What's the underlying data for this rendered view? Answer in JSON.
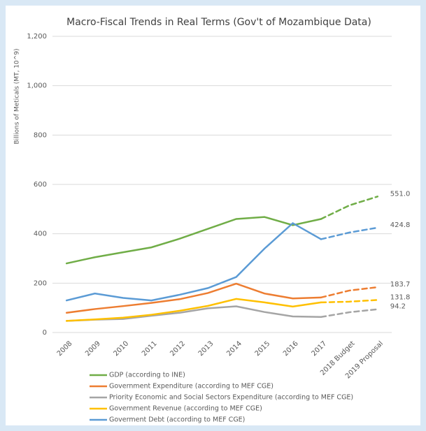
{
  "chart_data": {
    "type": "line",
    "title": "Macro-Fiscal Trends in Real Terms (Gov't of Mozambique Data)",
    "y_label": "Billions of Meticals (MT, 10^9)",
    "categories": [
      "2008",
      "2009",
      "2010",
      "2011",
      "2012",
      "2013",
      "2014",
      "2015",
      "2016",
      "2017",
      "2018 Budget",
      "2019 Proposal"
    ],
    "dashed_from": "2017",
    "ylim": [
      0,
      1200
    ],
    "yticks": [
      0,
      200,
      400,
      600,
      800,
      {
        "value": 1000,
        "label": "1,000"
      },
      {
        "value": 1200,
        "label": "1,200"
      }
    ],
    "grid": true,
    "legend": "bottom",
    "series": [
      {
        "name": "GDP (according to INE)",
        "color": "#70ad47",
        "values": [
          280,
          305,
          325,
          345,
          380,
          420,
          460,
          468,
          435,
          460,
          515,
          551.0
        ],
        "value_labels": [
          null,
          null,
          null,
          null,
          null,
          null,
          null,
          null,
          null,
          null,
          null,
          "551.0"
        ]
      },
      {
        "name": "Government Expenditure (according to MEF CGE)",
        "color": "#ed7d31",
        "values": [
          80,
          95,
          107,
          120,
          135,
          160,
          198,
          158,
          138,
          142,
          170,
          183.7
        ],
        "value_labels": [
          null,
          null,
          null,
          null,
          null,
          null,
          null,
          null,
          null,
          null,
          null,
          "183.7"
        ]
      },
      {
        "name": "Priority Economic and Social Sectors Expenditure (according to MEF CGE)",
        "color": "#a5a5a5",
        "values": [
          47,
          52,
          55,
          68,
          80,
          98,
          106,
          83,
          65,
          63,
          82,
          94.2
        ],
        "value_labels": [
          null,
          null,
          null,
          null,
          null,
          null,
          null,
          null,
          null,
          null,
          null,
          "94.2"
        ]
      },
      {
        "name": "Government Revenue (according to MEF CGE)",
        "color": "#ffc000",
        "values": [
          47,
          53,
          60,
          72,
          88,
          108,
          136,
          122,
          105,
          122,
          125,
          131.8
        ],
        "value_labels": [
          null,
          null,
          null,
          null,
          null,
          null,
          null,
          null,
          null,
          null,
          null,
          "131.8"
        ]
      },
      {
        "name": "Goverment Debt (according to MEF CGE)",
        "color": "#5b9bd5",
        "values": [
          130,
          158,
          140,
          130,
          153,
          180,
          225,
          340,
          443,
          378,
          405,
          424.8
        ],
        "value_labels": [
          null,
          null,
          null,
          null,
          null,
          null,
          null,
          null,
          null,
          null,
          null,
          "424.8"
        ]
      }
    ]
  }
}
